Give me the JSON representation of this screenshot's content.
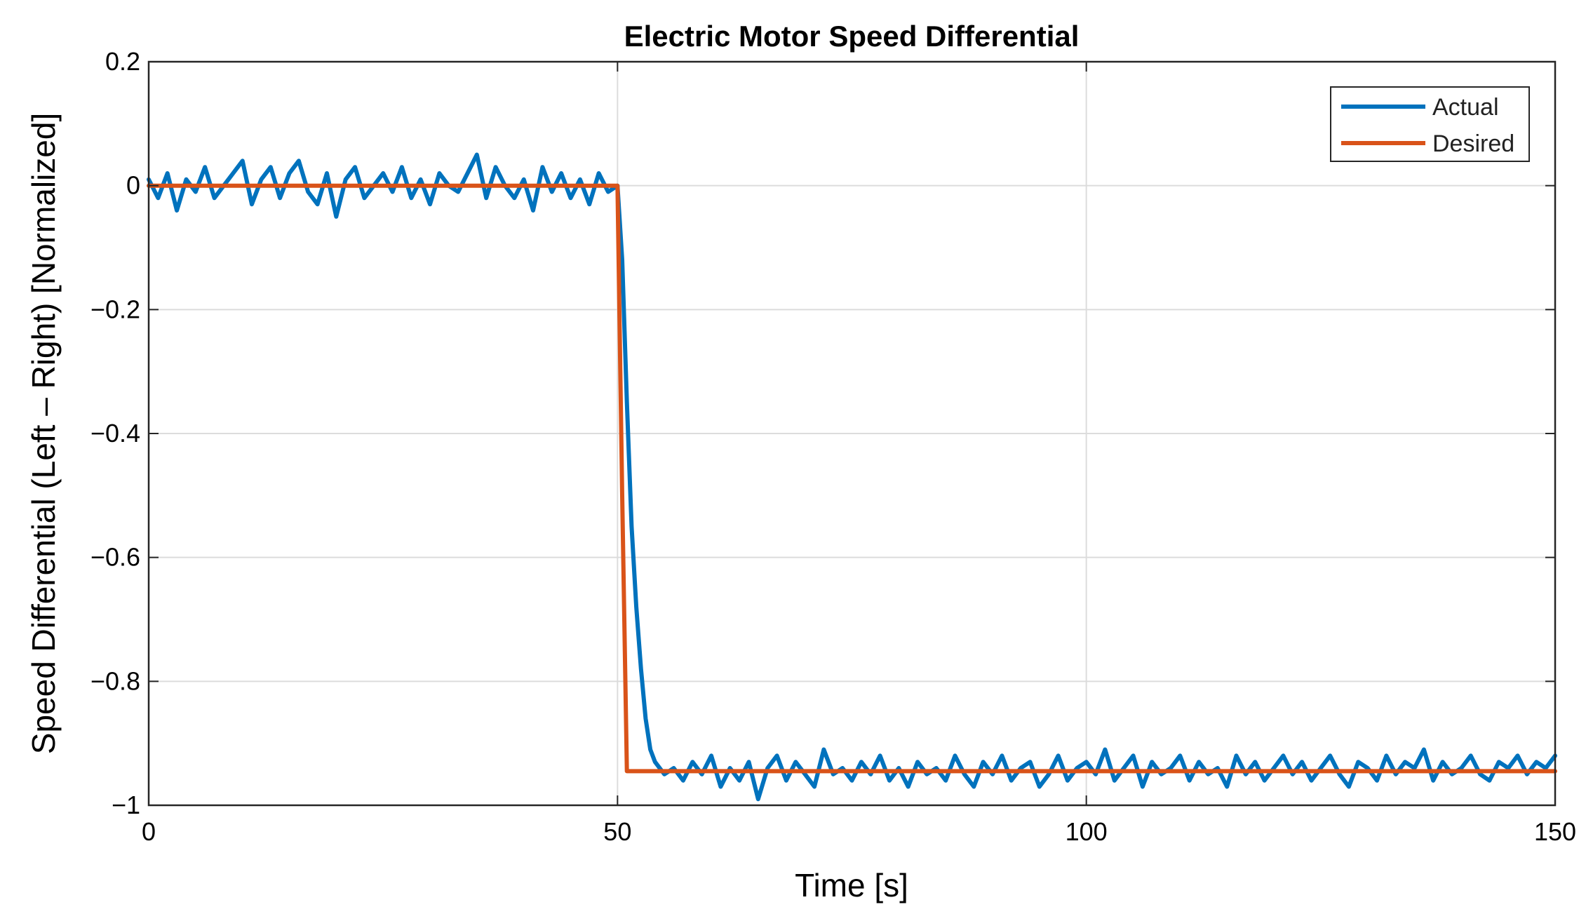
{
  "chart_data": {
    "type": "line",
    "title": "Electric Motor Speed Differential",
    "xlabel": "Time [s]",
    "ylabel": "Speed Differential (Left – Right) [Normalized]",
    "xlim": [
      0,
      150
    ],
    "ylim": [
      -1,
      0.2
    ],
    "xticks": [
      0,
      50,
      100,
      150
    ],
    "xtick_labels": [
      "0",
      "50",
      "100",
      "150"
    ],
    "yticks": [
      0.2,
      0,
      -0.2,
      -0.4,
      -0.6,
      -0.8,
      -1
    ],
    "ytick_labels": [
      "0.2",
      "0",
      "−0.2",
      "−0.4",
      "−0.6",
      "−0.8",
      "−1"
    ],
    "grid": true,
    "legend_position": "top-right",
    "series": [
      {
        "name": "Actual",
        "color": "#0072BD",
        "x": [
          0,
          1,
          2,
          3,
          4,
          5,
          6,
          7,
          8,
          9,
          10,
          11,
          12,
          13,
          14,
          15,
          16,
          17,
          18,
          19,
          20,
          21,
          22,
          23,
          24,
          25,
          26,
          27,
          28,
          29,
          30,
          31,
          32,
          33,
          34,
          35,
          36,
          37,
          38,
          39,
          40,
          41,
          42,
          43,
          44,
          45,
          46,
          47,
          48,
          49,
          50,
          50.5,
          51,
          51.5,
          52,
          52.5,
          53,
          53.5,
          54,
          55,
          56,
          57,
          58,
          59,
          60,
          61,
          62,
          63,
          64,
          65,
          66,
          67,
          68,
          69,
          70,
          71,
          72,
          73,
          74,
          75,
          76,
          77,
          78,
          79,
          80,
          81,
          82,
          83,
          84,
          85,
          86,
          87,
          88,
          89,
          90,
          91,
          92,
          93,
          94,
          95,
          96,
          97,
          98,
          99,
          100,
          101,
          102,
          103,
          104,
          105,
          106,
          107,
          108,
          109,
          110,
          111,
          112,
          113,
          114,
          115,
          116,
          117,
          118,
          119,
          120,
          121,
          122,
          123,
          124,
          125,
          126,
          127,
          128,
          129,
          130,
          131,
          132,
          133,
          134,
          135,
          136,
          137,
          138,
          139,
          140,
          141,
          142,
          143,
          144,
          145,
          146,
          147,
          148,
          149,
          150
        ],
        "y": [
          0.01,
          -0.02,
          0.02,
          -0.04,
          0.01,
          -0.01,
          0.03,
          -0.02,
          0.0,
          0.02,
          0.04,
          -0.03,
          0.01,
          0.03,
          -0.02,
          0.02,
          0.04,
          -0.01,
          -0.03,
          0.02,
          -0.05,
          0.01,
          0.03,
          -0.02,
          0.0,
          0.02,
          -0.01,
          0.03,
          -0.02,
          0.01,
          -0.03,
          0.02,
          0.0,
          -0.01,
          0.02,
          0.05,
          -0.02,
          0.03,
          0.0,
          -0.02,
          0.01,
          -0.04,
          0.03,
          -0.01,
          0.02,
          -0.02,
          0.01,
          -0.03,
          0.02,
          -0.01,
          0.0,
          -0.12,
          -0.35,
          -0.55,
          -0.68,
          -0.78,
          -0.86,
          -0.91,
          -0.93,
          -0.95,
          -0.94,
          -0.96,
          -0.93,
          -0.95,
          -0.92,
          -0.97,
          -0.94,
          -0.96,
          -0.93,
          -0.99,
          -0.94,
          -0.92,
          -0.96,
          -0.93,
          -0.95,
          -0.97,
          -0.91,
          -0.95,
          -0.94,
          -0.96,
          -0.93,
          -0.95,
          -0.92,
          -0.96,
          -0.94,
          -0.97,
          -0.93,
          -0.95,
          -0.94,
          -0.96,
          -0.92,
          -0.95,
          -0.97,
          -0.93,
          -0.95,
          -0.92,
          -0.96,
          -0.94,
          -0.93,
          -0.97,
          -0.95,
          -0.92,
          -0.96,
          -0.94,
          -0.93,
          -0.95,
          -0.91,
          -0.96,
          -0.94,
          -0.92,
          -0.97,
          -0.93,
          -0.95,
          -0.94,
          -0.92,
          -0.96,
          -0.93,
          -0.95,
          -0.94,
          -0.97,
          -0.92,
          -0.95,
          -0.93,
          -0.96,
          -0.94,
          -0.92,
          -0.95,
          -0.93,
          -0.96,
          -0.94,
          -0.92,
          -0.95,
          -0.97,
          -0.93,
          -0.94,
          -0.96,
          -0.92,
          -0.95,
          -0.93,
          -0.94,
          -0.91,
          -0.96,
          -0.93,
          -0.95,
          -0.94,
          -0.92,
          -0.95,
          -0.96,
          -0.93,
          -0.94,
          -0.92,
          -0.95,
          -0.93,
          -0.94,
          -0.92
        ]
      },
      {
        "name": "Desired",
        "color": "#D95319",
        "x": [
          0,
          50,
          50.5,
          51,
          150
        ],
        "y": [
          0,
          0,
          -0.5,
          -0.945,
          -0.945
        ]
      }
    ]
  }
}
